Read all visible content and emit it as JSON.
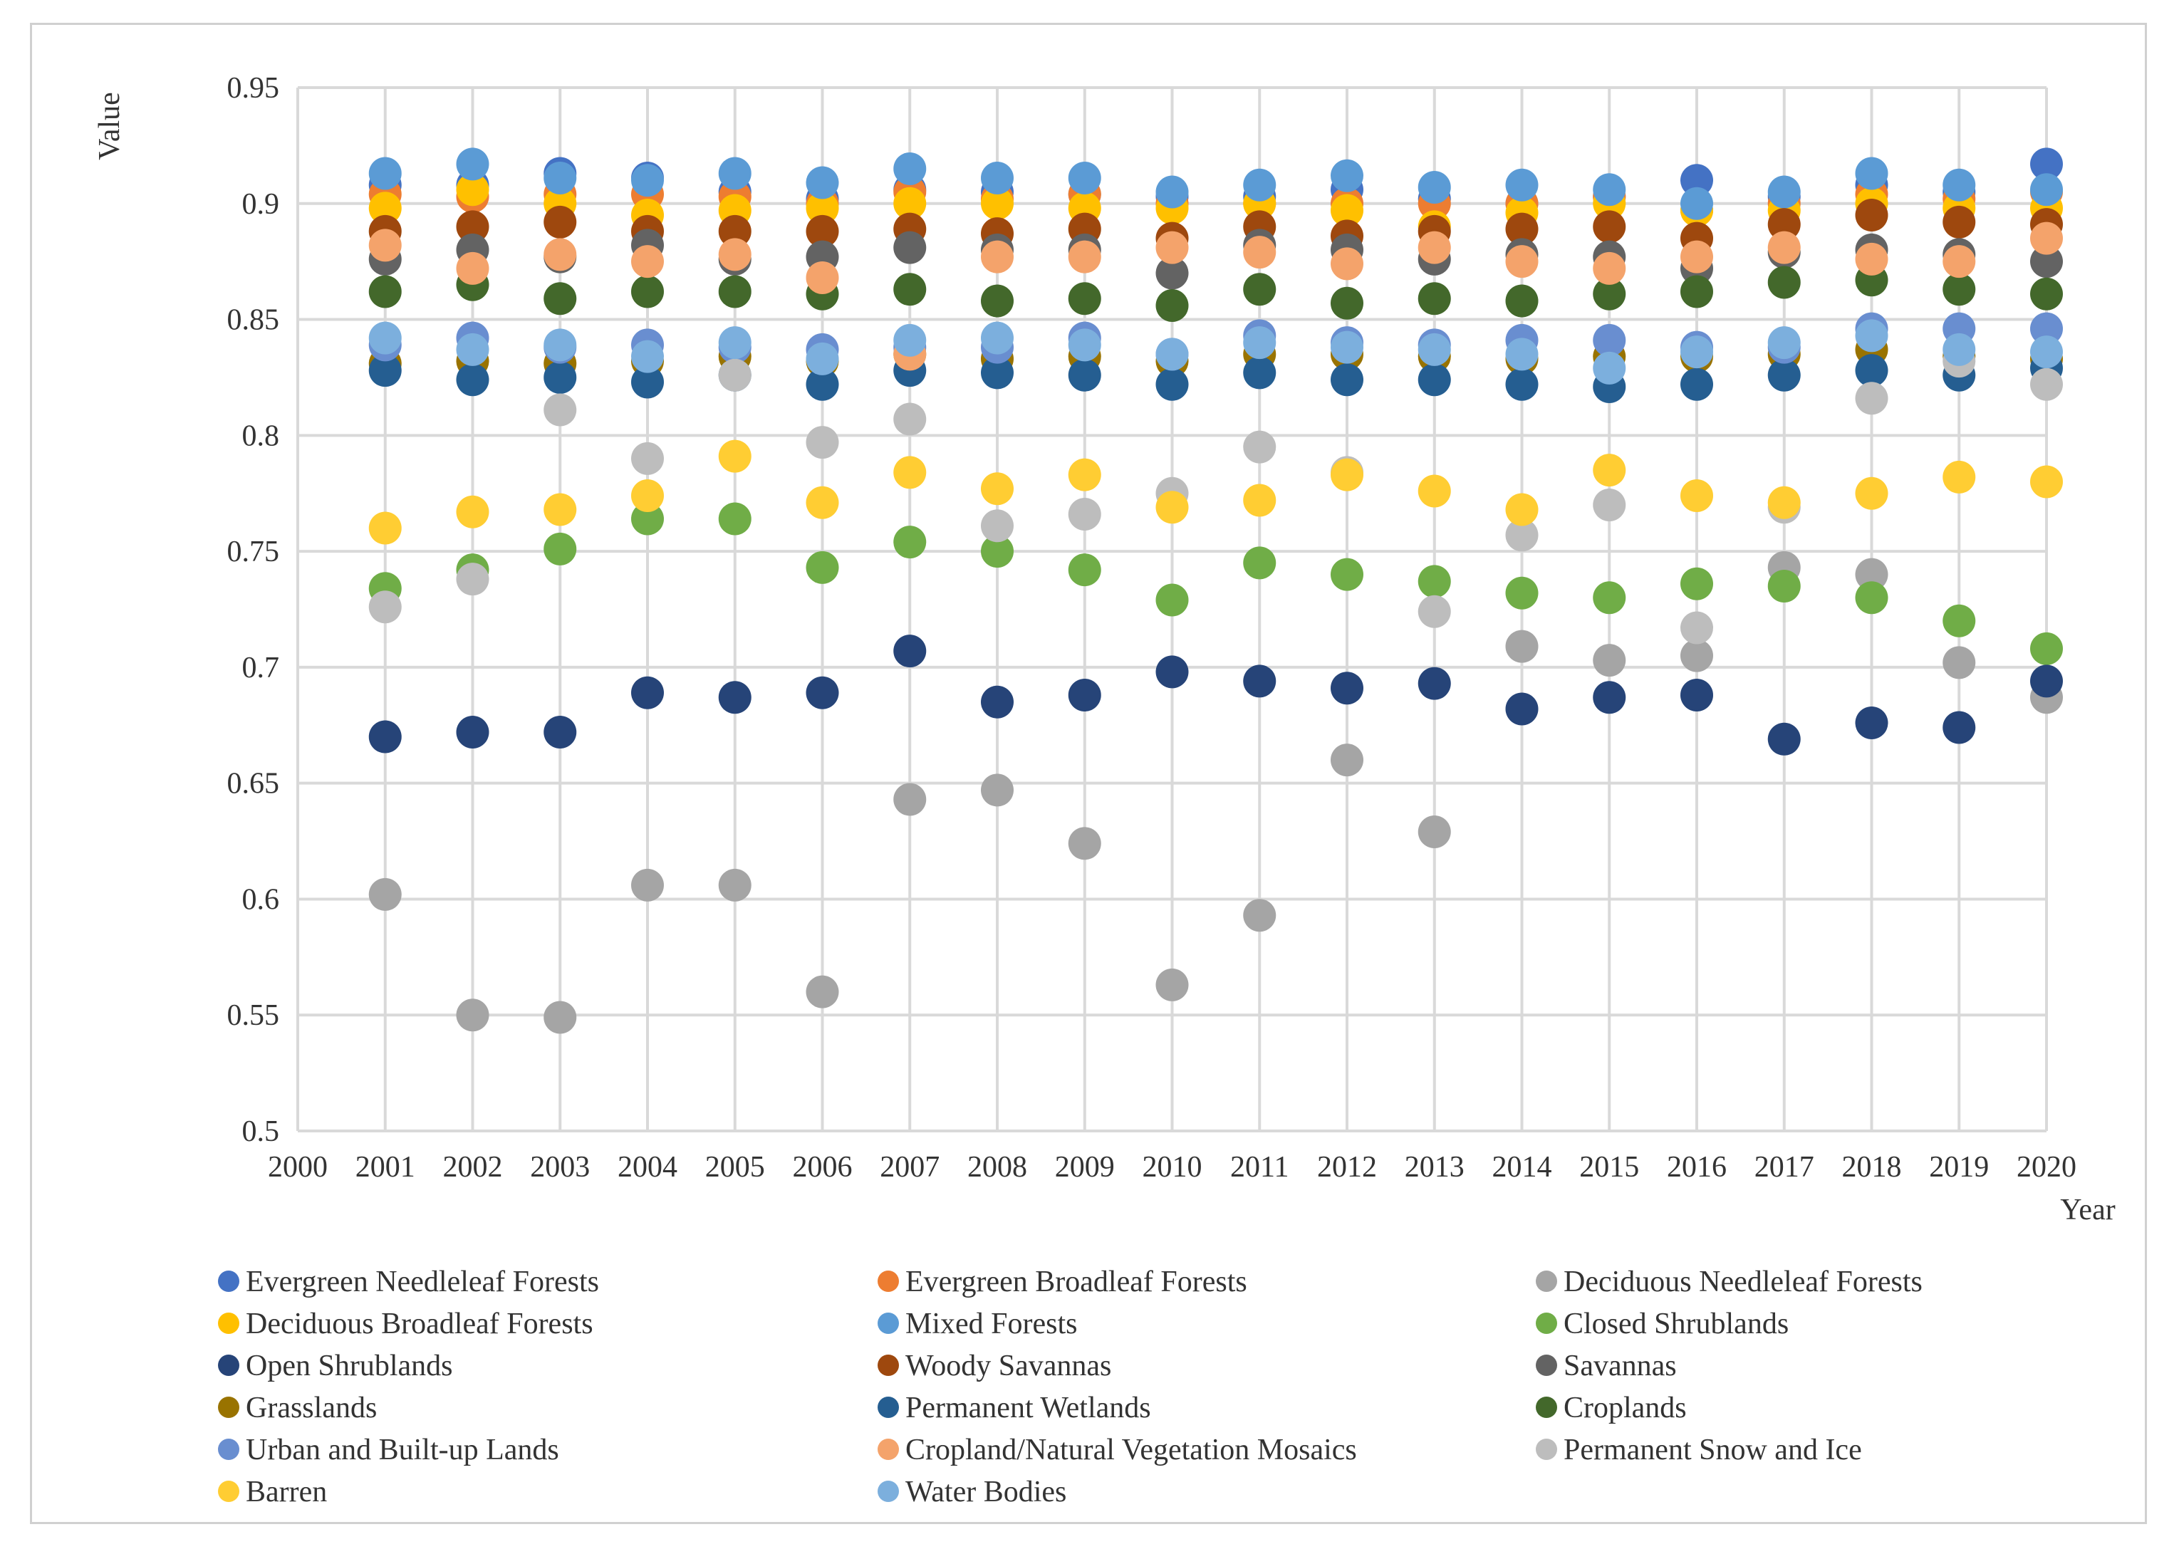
{
  "chart_data": {
    "type": "scatter",
    "title": "",
    "xlabel": "Year",
    "ylabel": "Value",
    "x_ticks": [
      "2000",
      "2001",
      "2002",
      "2003",
      "2004",
      "2005",
      "2006",
      "2007",
      "2008",
      "2009",
      "2010",
      "2011",
      "2012",
      "2013",
      "2014",
      "2015",
      "2016",
      "2017",
      "2018",
      "2019",
      "2020"
    ],
    "y_ticks": [
      "0.5",
      "0.55",
      "0.6",
      "0.65",
      "0.7",
      "0.75",
      "0.8",
      "0.85",
      "0.9",
      "0.95"
    ],
    "xlim": [
      2000,
      2020
    ],
    "ylim": [
      0.5,
      0.95
    ],
    "grid": "on",
    "legend_position": "bottom",
    "x": [
      2001,
      2002,
      2003,
      2004,
      2005,
      2006,
      2007,
      2008,
      2009,
      2010,
      2011,
      2012,
      2013,
      2014,
      2015,
      2016,
      2017,
      2018,
      2019,
      2020
    ],
    "series": [
      {
        "name": "Evergreen Needleleaf Forests",
        "color": "#4472C4",
        "values": [
          0.908,
          0.908,
          0.913,
          0.911,
          0.905,
          0.902,
          0.906,
          0.905,
          0.904,
          0.903,
          0.903,
          0.906,
          0.902,
          0.9,
          0.903,
          0.91,
          0.903,
          0.908,
          0.905,
          0.917
        ]
      },
      {
        "name": "Evergreen Broadleaf Forests",
        "color": "#ED7D31",
        "values": [
          0.904,
          0.903,
          0.904,
          0.904,
          0.903,
          0.9,
          0.905,
          0.902,
          0.904,
          0.9,
          0.9,
          0.9,
          0.9,
          0.9,
          0.903,
          0.897,
          0.9,
          0.904,
          0.902,
          0.905
        ]
      },
      {
        "name": "Deciduous Needleleaf Forests",
        "color": "#A5A5A5",
        "values": [
          0.602,
          0.55,
          0.549,
          0.606,
          0.606,
          0.56,
          0.643,
          0.647,
          0.624,
          0.563,
          0.593,
          0.66,
          0.629,
          0.709,
          0.703,
          0.705,
          0.743,
          0.74,
          0.702,
          0.687
        ]
      },
      {
        "name": "Deciduous Broadleaf Forests",
        "color": "#FFC000",
        "values": [
          0.898,
          0.906,
          0.9,
          0.895,
          0.897,
          0.898,
          0.9,
          0.9,
          0.898,
          0.898,
          0.9,
          0.897,
          0.89,
          0.896,
          0.9,
          0.897,
          0.897,
          0.9,
          0.898,
          0.898
        ]
      },
      {
        "name": "Mixed Forests",
        "color": "#5B9BD5",
        "values": [
          0.913,
          0.917,
          0.911,
          0.91,
          0.913,
          0.909,
          0.915,
          0.911,
          0.911,
          0.905,
          0.908,
          0.912,
          0.907,
          0.908,
          0.906,
          0.9,
          0.905,
          0.913,
          0.908,
          0.906
        ]
      },
      {
        "name": "Closed Shrublands",
        "color": "#70AD47",
        "values": [
          0.734,
          0.742,
          0.751,
          0.764,
          0.764,
          0.743,
          0.754,
          0.75,
          0.742,
          0.729,
          0.745,
          0.74,
          0.737,
          0.732,
          0.73,
          0.736,
          0.735,
          0.73,
          0.72,
          0.708
        ]
      },
      {
        "name": "Open Shrublands",
        "color": "#264478",
        "values": [
          0.67,
          0.672,
          0.672,
          0.689,
          0.687,
          0.689,
          0.707,
          0.685,
          0.688,
          0.698,
          0.694,
          0.691,
          0.693,
          0.682,
          0.687,
          0.688,
          0.669,
          0.676,
          0.674,
          0.694
        ]
      },
      {
        "name": "Woody Savannas",
        "color": "#9E480E",
        "values": [
          0.888,
          0.89,
          0.892,
          0.888,
          0.888,
          0.888,
          0.889,
          0.887,
          0.889,
          0.885,
          0.89,
          0.886,
          0.888,
          0.889,
          0.89,
          0.885,
          0.891,
          0.895,
          0.892,
          0.891
        ]
      },
      {
        "name": "Savannas",
        "color": "#636363",
        "values": [
          0.876,
          0.88,
          0.877,
          0.882,
          0.876,
          0.877,
          0.881,
          0.88,
          0.88,
          0.87,
          0.882,
          0.88,
          0.876,
          0.878,
          0.877,
          0.872,
          0.879,
          0.88,
          0.878,
          0.875
        ]
      },
      {
        "name": "Grasslands",
        "color": "#997300",
        "values": [
          0.831,
          0.832,
          0.831,
          0.832,
          0.834,
          0.832,
          0.835,
          0.833,
          0.834,
          0.832,
          0.835,
          0.835,
          0.834,
          0.833,
          0.834,
          0.834,
          0.835,
          0.837,
          0.834,
          0.833
        ]
      },
      {
        "name": "Permanent Wetlands",
        "color": "#255E91",
        "values": [
          0.828,
          0.824,
          0.825,
          0.823,
          0.826,
          0.822,
          0.828,
          0.827,
          0.826,
          0.822,
          0.827,
          0.824,
          0.824,
          0.822,
          0.821,
          0.822,
          0.826,
          0.828,
          0.826,
          0.829
        ]
      },
      {
        "name": "Croplands",
        "color": "#43682B",
        "values": [
          0.862,
          0.865,
          0.859,
          0.862,
          0.862,
          0.861,
          0.863,
          0.858,
          0.859,
          0.856,
          0.863,
          0.857,
          0.859,
          0.858,
          0.861,
          0.862,
          0.866,
          0.867,
          0.863,
          0.861
        ]
      },
      {
        "name": "Urban and Built-up Lands",
        "color": "#698ED0",
        "values": [
          0.839,
          0.842,
          0.838,
          0.839,
          0.838,
          0.837,
          0.838,
          0.838,
          0.842,
          0.835,
          0.843,
          0.84,
          0.839,
          0.841,
          0.841,
          0.838,
          0.838,
          0.846,
          0.846,
          0.846
        ]
      },
      {
        "name": "Cropland/Natural Vegetation Mosaics",
        "color": "#F4A36B",
        "values": [
          0.882,
          0.872,
          0.878,
          0.875,
          0.878,
          0.868,
          0.835,
          0.877,
          0.877,
          0.881,
          0.879,
          0.874,
          0.881,
          0.875,
          0.872,
          0.877,
          0.881,
          0.876,
          0.875,
          0.885
        ]
      },
      {
        "name": "Permanent Snow and Ice",
        "color": "#BDBDBD",
        "values": [
          0.726,
          0.738,
          0.811,
          0.79,
          0.826,
          0.797,
          0.807,
          0.761,
          0.766,
          0.775,
          0.795,
          0.784,
          0.724,
          0.757,
          0.77,
          0.717,
          0.769,
          0.816,
          0.832,
          0.822
        ]
      },
      {
        "name": "Barren",
        "color": "#FFCD33",
        "values": [
          0.76,
          0.767,
          0.768,
          0.774,
          0.791,
          0.771,
          0.784,
          0.777,
          0.783,
          0.769,
          0.772,
          0.783,
          0.776,
          0.768,
          0.785,
          0.774,
          0.771,
          0.775,
          0.782,
          0.78
        ]
      },
      {
        "name": "Water Bodies",
        "color": "#7CAFDD",
        "values": [
          0.842,
          0.837,
          0.839,
          0.834,
          0.84,
          0.833,
          0.841,
          0.842,
          0.839,
          0.835,
          0.84,
          0.838,
          0.837,
          0.835,
          0.829,
          0.836,
          0.84,
          0.843,
          0.837,
          0.836
        ]
      }
    ]
  }
}
